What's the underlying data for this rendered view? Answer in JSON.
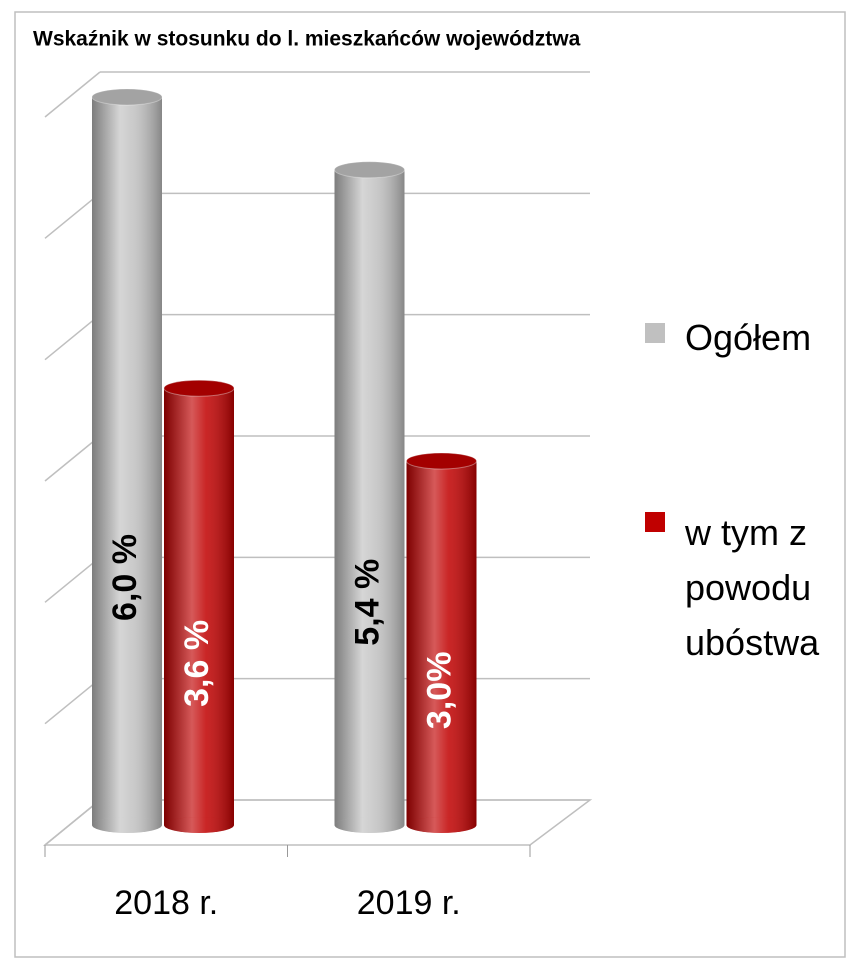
{
  "chart_data": {
    "type": "cylinder-bar",
    "title": "Wskaźnik w stosunku do l. mieszkańców województwa",
    "categories": [
      "2018 r.",
      "2019 r."
    ],
    "series": [
      {
        "name": "Ogółem",
        "color": "#c0c0c0",
        "label_color": "#000000",
        "values": [
          6.0,
          5.4
        ],
        "value_labels": [
          "6,0 %",
          "5,4 %"
        ]
      },
      {
        "name": "w tym z powodu ubóstwa",
        "color": "#c00000",
        "label_color": "#ffffff",
        "values": [
          3.6,
          3.0
        ],
        "value_labels": [
          "3,6 %",
          "3,0%"
        ]
      }
    ],
    "ylim": [
      0,
      6
    ],
    "yticks": [
      0,
      1,
      2,
      3,
      4,
      5,
      6
    ],
    "grid": true,
    "legend": "right"
  }
}
